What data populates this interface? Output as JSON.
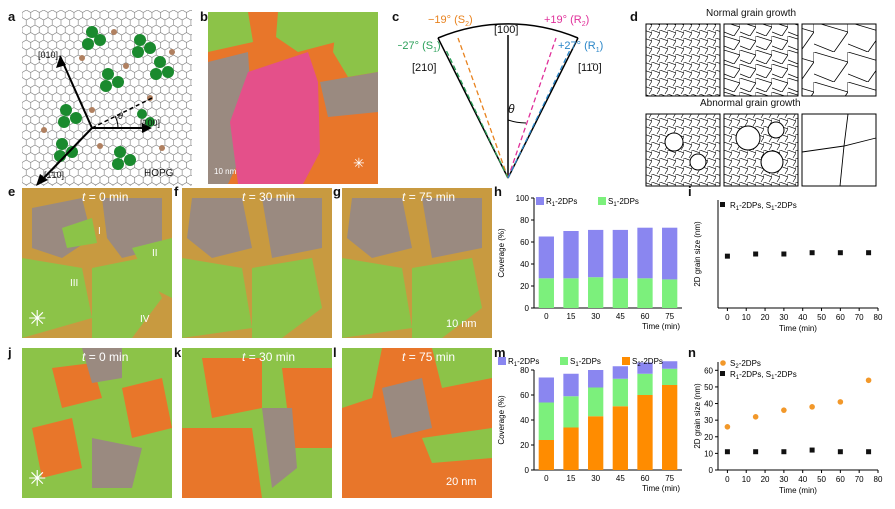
{
  "panel_letters": [
    "a",
    "b",
    "c",
    "d",
    "e",
    "f",
    "g",
    "h",
    "i",
    "j",
    "k",
    "l",
    "m",
    "n"
  ],
  "panel_a": {
    "dir_010": "[010]",
    "dir_100": "[100]",
    "dir_110": "[1̄1̄0]",
    "theta": "θ",
    "substrate": "HOPG"
  },
  "panel_b": {
    "scale": "10 nm"
  },
  "panel_c": {
    "top": "[100]",
    "left": "[210]",
    "right": "[11̄0]",
    "theta": "θ",
    "angles": [
      {
        "text": "−19° (S",
        "sub": "2",
        "end": ")",
        "color": "#e8821e"
      },
      {
        "text": "−27° (S",
        "sub": "1",
        "end": ")",
        "color": "#2ca05a"
      },
      {
        "text": "+19° (R",
        "sub": "2",
        "end": ")",
        "color": "#e0309a"
      },
      {
        "text": "+27° (R",
        "sub": "1",
        "end": ")",
        "color": "#2a86c8"
      }
    ]
  },
  "panel_d": {
    "normal": "Normal grain growth",
    "abnormal": "Abnormal grain growth"
  },
  "time_labels": {
    "e": "= 0 min",
    "f": "= 30 min",
    "g": "= 75 min",
    "j": "= 0 min",
    "k": "= 30 min",
    "l": "= 75 min",
    "t": "t"
  },
  "grain_markers": [
    "I",
    "II",
    "III",
    "IV"
  ],
  "scales": {
    "g": "10 nm",
    "l": "20 nm"
  },
  "colors": {
    "orange": "#e8762a",
    "green": "#8cc348",
    "gray": "#9a8a80",
    "pink": "#e4508a",
    "blue_bar": "#8a86f0",
    "green_bar": "#7cf07c",
    "orange_bar": "#ff8c00"
  },
  "chart_data": [
    {
      "panel": "h",
      "type": "bar",
      "categories": [
        "0",
        "15",
        "30",
        "45",
        "60",
        "75"
      ],
      "xlabel": "Time (min)",
      "ylabel": "Coverage (%)",
      "ylim": [
        0,
        100
      ],
      "yticks": [
        "0",
        "20",
        "40",
        "60",
        "80",
        "100"
      ],
      "stacked": true,
      "series": [
        {
          "name": "S",
          "sub": "1",
          "suffix": "-2DPs",
          "color": "#7cf07c",
          "values": [
            27,
            27,
            28,
            27,
            27,
            26
          ]
        },
        {
          "name": "R",
          "sub": "1",
          "suffix": "-2DPs",
          "color": "#8a86f0",
          "values": [
            38,
            43,
            43,
            44,
            46,
            47
          ]
        }
      ]
    },
    {
      "panel": "i",
      "type": "scatter",
      "xlabel": "Time (min)",
      "ylabel": "2D grain size (nm)",
      "xlim": [
        -5,
        80
      ],
      "ylim": [
        0,
        25
      ],
      "xticks": [
        "0",
        "10",
        "20",
        "30",
        "40",
        "50",
        "60",
        "70",
        "80"
      ],
      "series": [
        {
          "name": "R",
          "sub": "1",
          "suffix": "-2DPs, S",
          "sub2": "1",
          "suffix2": "-2DPs",
          "color": "#111111",
          "marker": "square",
          "x": [
            0,
            15,
            30,
            45,
            60,
            75
          ],
          "y": [
            12.0,
            12.5,
            12.5,
            12.8,
            12.8,
            12.8
          ]
        }
      ]
    },
    {
      "panel": "m",
      "type": "bar",
      "categories": [
        "0",
        "15",
        "30",
        "45",
        "60",
        "75"
      ],
      "xlabel": "Time (min)",
      "ylabel": "Coverage (%)",
      "ylim": [
        0,
        80
      ],
      "yticks": [
        "0",
        "20",
        "40",
        "60",
        "80"
      ],
      "stacked": true,
      "series": [
        {
          "name": "S",
          "sub": "2",
          "suffix": "-2DPs",
          "color": "#ff8c00",
          "values": [
            24,
            34,
            43,
            51,
            60,
            68
          ]
        },
        {
          "name": "S",
          "sub": "1",
          "suffix": "-2DPs",
          "color": "#7cf07c",
          "values": [
            30,
            25,
            23,
            22,
            17,
            13
          ]
        },
        {
          "name": "R",
          "sub": "1",
          "suffix": "-2DPs",
          "color": "#8a86f0",
          "values": [
            20,
            18,
            14,
            10,
            9,
            6
          ]
        }
      ]
    },
    {
      "panel": "n",
      "type": "scatter",
      "xlabel": "Time (min)",
      "ylabel": "2D grain size (nm)",
      "xlim": [
        -5,
        80
      ],
      "ylim": [
        0,
        65
      ],
      "yticks": [
        "0",
        "10",
        "20",
        "30",
        "40",
        "50",
        "60"
      ],
      "xticks": [
        "0",
        "10",
        "20",
        "30",
        "40",
        "50",
        "60",
        "70",
        "80"
      ],
      "series": [
        {
          "name": "S",
          "sub": "2",
          "suffix": "-2DPs",
          "color": "#f2982a",
          "marker": "circle",
          "x": [
            0,
            15,
            30,
            45,
            60,
            75
          ],
          "y": [
            26,
            32,
            36,
            38,
            41,
            54
          ]
        },
        {
          "name": "R",
          "sub": "1",
          "suffix": "-2DPs, S",
          "sub2": "1",
          "suffix2": "-2DPs",
          "color": "#111111",
          "marker": "square",
          "x": [
            0,
            15,
            30,
            45,
            60,
            75
          ],
          "y": [
            11,
            11,
            11,
            12,
            11,
            11
          ]
        }
      ]
    }
  ]
}
